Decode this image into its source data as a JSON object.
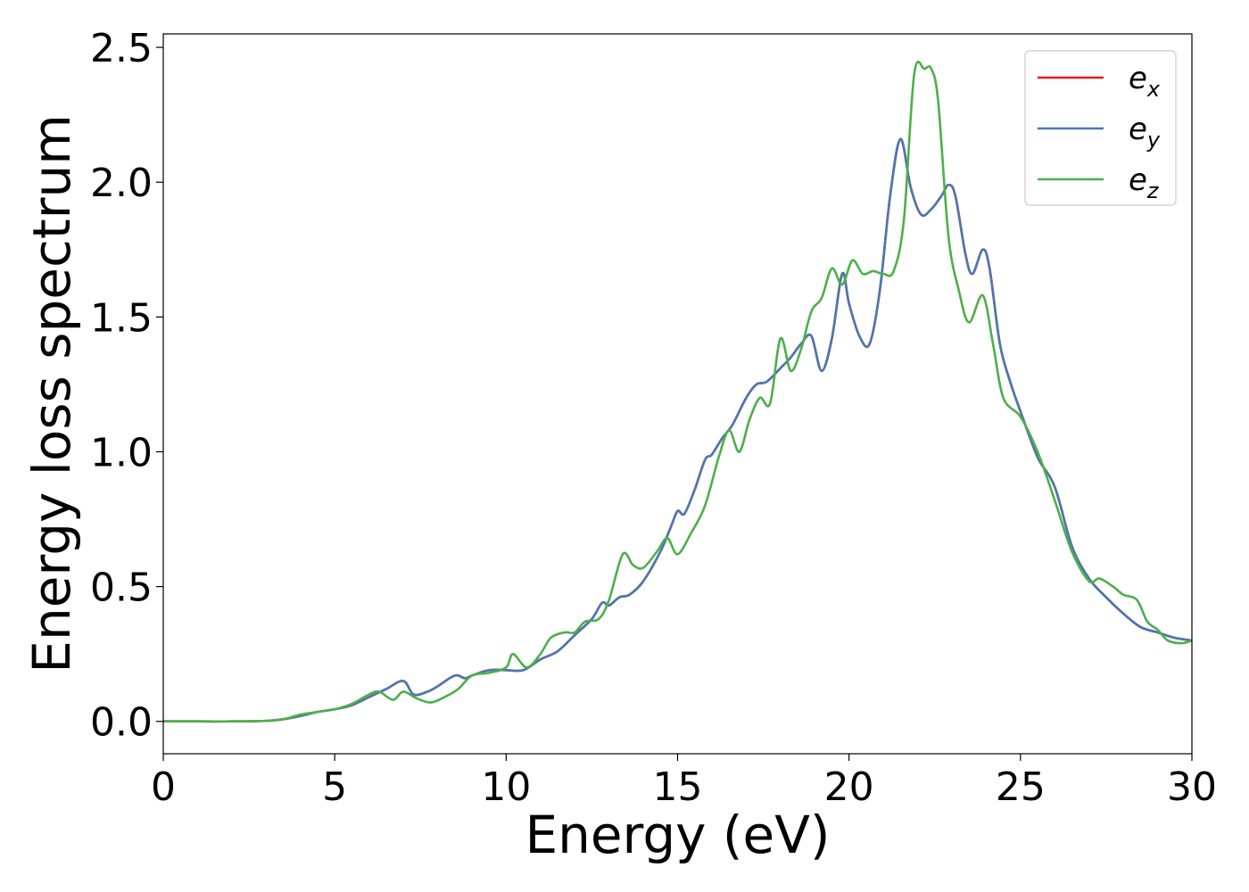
{
  "chart_data": {
    "type": "line",
    "xlabel": "Energy (eV)",
    "ylabel": "Energy loss spectrum",
    "xlim": [
      0,
      30
    ],
    "ylim": [
      -0.12,
      2.55
    ],
    "xticks": [
      0,
      5,
      10,
      15,
      20,
      25,
      30
    ],
    "xtick_labels": [
      "0",
      "5",
      "10",
      "15",
      "20",
      "25",
      "30"
    ],
    "yticks": [
      0.0,
      0.5,
      1.0,
      1.5,
      2.0,
      2.5
    ],
    "ytick_labels": [
      "0.0",
      "0.5",
      "1.0",
      "1.5",
      "2.0",
      "2.5"
    ],
    "grid": false,
    "legend_position": "top-right",
    "series": [
      {
        "name": "e_x",
        "label_main": "e",
        "label_sub": "x",
        "color": "#e41a1c",
        "x": [
          0,
          1,
          2,
          3,
          3.5,
          4,
          4.5,
          5,
          5.5,
          6,
          6.5,
          7,
          7.3,
          7.7,
          8,
          8.5,
          8.8,
          9,
          9.5,
          10,
          10.5,
          11,
          11.5,
          12,
          12.5,
          12.8,
          13,
          13.3,
          13.6,
          14,
          14.5,
          14.8,
          15,
          15.2,
          15.5,
          15.8,
          16,
          16.3,
          16.6,
          17,
          17.3,
          17.6,
          18,
          18.3,
          18.6,
          18.9,
          19.2,
          19.5,
          19.8,
          20,
          20.3,
          20.6,
          20.9,
          21.2,
          21.5,
          21.8,
          22.1,
          22.4,
          22.7,
          22.9,
          23.1,
          23.4,
          23.6,
          23.9,
          24.1,
          24.4,
          24.7,
          25,
          25.5,
          26,
          26.5,
          27,
          27.5,
          28,
          28.5,
          29,
          29.5,
          30
        ],
        "y": [
          0,
          0,
          0,
          0.002,
          0.008,
          0.02,
          0.035,
          0.045,
          0.06,
          0.09,
          0.12,
          0.15,
          0.1,
          0.11,
          0.13,
          0.17,
          0.16,
          0.17,
          0.19,
          0.19,
          0.19,
          0.23,
          0.26,
          0.32,
          0.38,
          0.44,
          0.43,
          0.46,
          0.47,
          0.52,
          0.63,
          0.72,
          0.78,
          0.77,
          0.86,
          0.97,
          0.99,
          1.05,
          1.1,
          1.2,
          1.25,
          1.26,
          1.31,
          1.35,
          1.4,
          1.43,
          1.3,
          1.42,
          1.66,
          1.55,
          1.43,
          1.4,
          1.6,
          1.95,
          2.16,
          1.98,
          1.88,
          1.9,
          1.95,
          1.99,
          1.95,
          1.73,
          1.66,
          1.75,
          1.68,
          1.4,
          1.26,
          1.15,
          0.98,
          0.87,
          0.65,
          0.53,
          0.46,
          0.4,
          0.35,
          0.33,
          0.31,
          0.3
        ]
      },
      {
        "name": "e_y",
        "label_main": "e",
        "label_sub": "y",
        "color": "#4a78b0",
        "x": [
          0,
          1,
          2,
          3,
          3.5,
          4,
          4.5,
          5,
          5.5,
          6,
          6.5,
          7,
          7.3,
          7.7,
          8,
          8.5,
          8.8,
          9,
          9.5,
          10,
          10.5,
          11,
          11.5,
          12,
          12.5,
          12.8,
          13,
          13.3,
          13.6,
          14,
          14.5,
          14.8,
          15,
          15.2,
          15.5,
          15.8,
          16,
          16.3,
          16.6,
          17,
          17.3,
          17.6,
          18,
          18.3,
          18.6,
          18.9,
          19.2,
          19.5,
          19.8,
          20,
          20.3,
          20.6,
          20.9,
          21.2,
          21.5,
          21.8,
          22.1,
          22.4,
          22.7,
          22.9,
          23.1,
          23.4,
          23.6,
          23.9,
          24.1,
          24.4,
          24.7,
          25,
          25.5,
          26,
          26.5,
          27,
          27.5,
          28,
          28.5,
          29,
          29.5,
          30
        ],
        "y": [
          0,
          0,
          0,
          0.002,
          0.008,
          0.02,
          0.035,
          0.045,
          0.06,
          0.09,
          0.12,
          0.15,
          0.1,
          0.11,
          0.13,
          0.17,
          0.16,
          0.17,
          0.19,
          0.19,
          0.19,
          0.23,
          0.26,
          0.32,
          0.38,
          0.44,
          0.43,
          0.46,
          0.47,
          0.52,
          0.63,
          0.72,
          0.78,
          0.77,
          0.86,
          0.97,
          0.99,
          1.05,
          1.1,
          1.2,
          1.25,
          1.26,
          1.31,
          1.35,
          1.4,
          1.43,
          1.3,
          1.42,
          1.66,
          1.55,
          1.43,
          1.4,
          1.6,
          1.95,
          2.16,
          1.98,
          1.88,
          1.9,
          1.95,
          1.99,
          1.95,
          1.73,
          1.66,
          1.75,
          1.68,
          1.4,
          1.26,
          1.15,
          0.98,
          0.87,
          0.65,
          0.53,
          0.46,
          0.4,
          0.35,
          0.33,
          0.31,
          0.3
        ]
      },
      {
        "name": "e_z",
        "label_main": "e",
        "label_sub": "z",
        "color": "#4daf4a",
        "x": [
          0,
          1,
          2,
          3,
          3.5,
          4,
          4.5,
          5,
          5.5,
          6,
          6.3,
          6.7,
          7,
          7.4,
          7.8,
          8.2,
          8.6,
          9,
          9.5,
          10,
          10.2,
          10.6,
          11,
          11.3,
          11.7,
          12,
          12.3,
          12.7,
          13,
          13.4,
          13.7,
          14,
          14.4,
          14.7,
          15,
          15.4,
          15.8,
          16.2,
          16.5,
          16.8,
          17.1,
          17.4,
          17.7,
          18,
          18.3,
          18.6,
          18.9,
          19.2,
          19.5,
          19.8,
          20.1,
          20.4,
          20.7,
          21,
          21.3,
          21.6,
          21.9,
          22.2,
          22.4,
          22.6,
          22.9,
          23.2,
          23.5,
          23.9,
          24.2,
          24.5,
          25,
          25.5,
          26,
          26.5,
          27,
          27.3,
          27.7,
          28,
          28.4,
          28.7,
          29,
          29.3,
          29.7,
          30
        ],
        "y": [
          0,
          0,
          0,
          0.002,
          0.008,
          0.025,
          0.035,
          0.045,
          0.065,
          0.1,
          0.11,
          0.08,
          0.11,
          0.085,
          0.07,
          0.09,
          0.12,
          0.17,
          0.18,
          0.2,
          0.25,
          0.2,
          0.25,
          0.31,
          0.33,
          0.33,
          0.37,
          0.38,
          0.45,
          0.62,
          0.58,
          0.57,
          0.63,
          0.68,
          0.62,
          0.7,
          0.8,
          0.98,
          1.08,
          1.0,
          1.12,
          1.2,
          1.18,
          1.42,
          1.3,
          1.38,
          1.52,
          1.57,
          1.68,
          1.62,
          1.71,
          1.66,
          1.67,
          1.66,
          1.67,
          1.86,
          2.4,
          2.42,
          2.42,
          2.3,
          1.8,
          1.6,
          1.48,
          1.58,
          1.4,
          1.2,
          1.13,
          1.0,
          0.82,
          0.63,
          0.52,
          0.53,
          0.5,
          0.47,
          0.45,
          0.37,
          0.34,
          0.3,
          0.29,
          0.3
        ]
      }
    ]
  }
}
